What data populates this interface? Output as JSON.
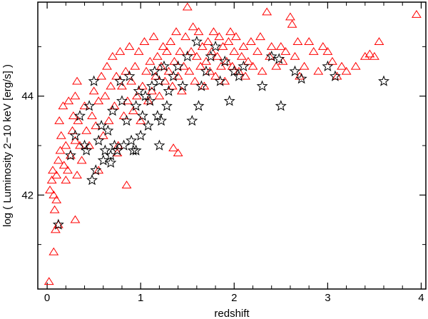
{
  "chart_data": {
    "type": "scatter",
    "title": "",
    "xlabel": "redshift",
    "ylabel": "log ( Luminosity 2−10 keV [erg/s] )",
    "xlim": [
      -0.1,
      4.05
    ],
    "ylim": [
      40.1,
      45.9
    ],
    "xticks": [
      0,
      1,
      2,
      3,
      4
    ],
    "xtick_labels": [
      "0",
      "1",
      "2",
      "3",
      "4"
    ],
    "yticks": [
      42,
      44
    ],
    "ytick_labels": [
      "42",
      "44"
    ],
    "grid": false,
    "legend": "none",
    "series": [
      {
        "marker": "triangle",
        "color": "#ff0000",
        "points": [
          [
            0.02,
            40.25
          ],
          [
            0.07,
            40.85
          ],
          [
            0.09,
            41.3
          ],
          [
            0.08,
            41.7
          ],
          [
            0.07,
            42.0
          ],
          [
            0.1,
            41.9
          ],
          [
            0.12,
            41.4
          ],
          [
            0.03,
            42.1
          ],
          [
            0.05,
            42.3
          ],
          [
            0.06,
            42.5
          ],
          [
            0.1,
            42.4
          ],
          [
            0.12,
            42.7
          ],
          [
            0.14,
            42.9
          ],
          [
            0.15,
            43.2
          ],
          [
            0.18,
            42.6
          ],
          [
            0.2,
            43.0
          ],
          [
            0.13,
            43.5
          ],
          [
            0.17,
            43.8
          ],
          [
            0.2,
            42.3
          ],
          [
            0.22,
            42.5
          ],
          [
            0.25,
            42.8
          ],
          [
            0.27,
            43.3
          ],
          [
            0.3,
            43.1
          ],
          [
            0.28,
            43.6
          ],
          [
            0.23,
            43.9
          ],
          [
            0.33,
            43.5
          ],
          [
            0.35,
            43.0
          ],
          [
            0.37,
            42.7
          ],
          [
            0.32,
            42.4
          ],
          [
            0.3,
            44.0
          ],
          [
            0.32,
            44.3
          ],
          [
            0.4,
            43.8
          ],
          [
            0.42,
            43.3
          ],
          [
            0.45,
            43.0
          ],
          [
            0.48,
            43.6
          ],
          [
            0.5,
            44.1
          ],
          [
            0.52,
            43.4
          ],
          [
            0.55,
            43.9
          ],
          [
            0.58,
            44.4
          ],
          [
            0.6,
            43.2
          ],
          [
            0.62,
            44.0
          ],
          [
            0.64,
            44.6
          ],
          [
            0.66,
            43.5
          ],
          [
            0.68,
            44.2
          ],
          [
            0.7,
            44.8
          ],
          [
            0.72,
            43.8
          ],
          [
            0.74,
            44.4
          ],
          [
            0.76,
            43.0
          ],
          [
            0.78,
            44.9
          ],
          [
            0.8,
            44.2
          ],
          [
            0.82,
            43.6
          ],
          [
            0.84,
            44.5
          ],
          [
            0.86,
            43.9
          ],
          [
            0.88,
            45.0
          ],
          [
            0.9,
            44.3
          ],
          [
            0.92,
            43.7
          ],
          [
            0.94,
            44.6
          ],
          [
            0.96,
            44.0
          ],
          [
            0.98,
            44.9
          ],
          [
            1.0,
            43.5
          ],
          [
            1.02,
            44.2
          ],
          [
            1.04,
            45.1
          ],
          [
            1.06,
            44.5
          ],
          [
            1.08,
            43.9
          ],
          [
            1.1,
            44.7
          ],
          [
            1.12,
            44.1
          ],
          [
            1.14,
            45.2
          ],
          [
            1.16,
            44.4
          ],
          [
            1.18,
            44.8
          ],
          [
            1.2,
            44.0
          ],
          [
            1.22,
            44.6
          ],
          [
            1.24,
            45.0
          ],
          [
            1.26,
            44.3
          ],
          [
            1.28,
            44.9
          ],
          [
            1.3,
            44.5
          ],
          [
            1.32,
            45.1
          ],
          [
            1.34,
            44.2
          ],
          [
            1.36,
            44.7
          ],
          [
            1.38,
            45.3
          ],
          [
            1.4,
            44.4
          ],
          [
            1.42,
            44.9
          ],
          [
            1.44,
            44.1
          ],
          [
            1.46,
            44.6
          ],
          [
            1.48,
            45.2
          ],
          [
            1.5,
            45.8
          ],
          [
            1.52,
            44.5
          ],
          [
            1.54,
            44.9
          ],
          [
            1.56,
            45.4
          ],
          [
            1.58,
            44.3
          ],
          [
            1.6,
            44.8
          ],
          [
            1.62,
            45.3
          ],
          [
            1.64,
            44.6
          ],
          [
            1.66,
            45.0
          ],
          [
            1.68,
            44.2
          ],
          [
            1.7,
            44.7
          ],
          [
            1.72,
            45.1
          ],
          [
            1.74,
            44.5
          ],
          [
            1.76,
            44.9
          ],
          [
            1.78,
            45.3
          ],
          [
            1.8,
            44.4
          ],
          [
            1.82,
            44.8
          ],
          [
            1.84,
            45.2
          ],
          [
            1.86,
            44.6
          ],
          [
            1.88,
            45.0
          ],
          [
            1.9,
            44.3
          ],
          [
            1.92,
            44.7
          ],
          [
            1.94,
            45.1
          ],
          [
            1.96,
            45.3
          ],
          [
            1.98,
            44.6
          ],
          [
            2.0,
            44.9
          ],
          [
            2.02,
            45.2
          ],
          [
            2.05,
            44.5
          ],
          [
            2.08,
            44.8
          ],
          [
            2.1,
            45.0
          ],
          [
            2.12,
            44.4
          ],
          [
            2.15,
            44.7
          ],
          [
            2.18,
            45.1
          ],
          [
            2.2,
            44.6
          ],
          [
            2.25,
            44.9
          ],
          [
            2.28,
            45.2
          ],
          [
            2.3,
            44.5
          ],
          [
            2.35,
            45.7
          ],
          [
            2.38,
            44.8
          ],
          [
            2.4,
            45.0
          ],
          [
            2.45,
            44.6
          ],
          [
            2.5,
            45.0
          ],
          [
            2.52,
            44.7
          ],
          [
            2.55,
            44.9
          ],
          [
            2.6,
            45.6
          ],
          [
            2.62,
            45.45
          ],
          [
            2.65,
            44.8
          ],
          [
            2.68,
            45.1
          ],
          [
            2.7,
            44.4
          ],
          [
            2.75,
            44.6
          ],
          [
            2.8,
            45.1
          ],
          [
            2.85,
            44.9
          ],
          [
            2.9,
            44.5
          ],
          [
            2.95,
            45.0
          ],
          [
            3.0,
            44.9
          ],
          [
            3.05,
            44.7
          ],
          [
            3.1,
            44.4
          ],
          [
            3.15,
            44.6
          ],
          [
            3.2,
            44.5
          ],
          [
            3.3,
            44.6
          ],
          [
            3.4,
            44.8
          ],
          [
            3.45,
            44.85
          ],
          [
            3.5,
            44.8
          ],
          [
            3.55,
            45.1
          ],
          [
            3.95,
            45.65
          ],
          [
            0.85,
            42.2
          ],
          [
            0.75,
            42.85
          ],
          [
            1.35,
            42.95
          ],
          [
            1.4,
            42.85
          ],
          [
            0.3,
            41.5
          ],
          [
            0.55,
            42.5
          ]
        ]
      },
      {
        "marker": "star",
        "color": "#000000",
        "points": [
          [
            0.12,
            41.4
          ],
          [
            0.25,
            42.8
          ],
          [
            0.3,
            43.2
          ],
          [
            0.35,
            43.6
          ],
          [
            0.4,
            43.0
          ],
          [
            0.42,
            42.9
          ],
          [
            0.45,
            43.8
          ],
          [
            0.48,
            42.3
          ],
          [
            0.52,
            42.5
          ],
          [
            0.55,
            43.1
          ],
          [
            0.58,
            43.4
          ],
          [
            0.6,
            42.7
          ],
          [
            0.62,
            42.9
          ],
          [
            0.65,
            43.3
          ],
          [
            0.68,
            42.8
          ],
          [
            0.7,
            43.7
          ],
          [
            0.72,
            43.0
          ],
          [
            0.75,
            42.9
          ],
          [
            0.78,
            44.3
          ],
          [
            0.8,
            43.9
          ],
          [
            0.82,
            43.0
          ],
          [
            0.85,
            43.5
          ],
          [
            0.88,
            44.4
          ],
          [
            0.9,
            43.1
          ],
          [
            0.92,
            42.9
          ],
          [
            0.95,
            43.8
          ],
          [
            0.98,
            44.1
          ],
          [
            1.0,
            43.2
          ],
          [
            1.02,
            43.6
          ],
          [
            1.05,
            44.0
          ],
          [
            1.08,
            43.4
          ],
          [
            1.1,
            43.9
          ],
          [
            1.12,
            44.2
          ],
          [
            1.15,
            44.5
          ],
          [
            1.18,
            43.6
          ],
          [
            1.2,
            44.3
          ],
          [
            1.22,
            43.5
          ],
          [
            1.25,
            44.6
          ],
          [
            1.28,
            43.8
          ],
          [
            1.3,
            44.1
          ],
          [
            1.35,
            44.4
          ],
          [
            1.4,
            44.6
          ],
          [
            1.45,
            44.2
          ],
          [
            1.5,
            44.8
          ],
          [
            1.55,
            43.5
          ],
          [
            1.6,
            45.1
          ],
          [
            1.62,
            43.8
          ],
          [
            1.65,
            44.2
          ],
          [
            1.7,
            44.5
          ],
          [
            1.75,
            44.8
          ],
          [
            1.8,
            45.0
          ],
          [
            1.85,
            44.3
          ],
          [
            1.9,
            44.7
          ],
          [
            1.95,
            43.9
          ],
          [
            2.0,
            44.5
          ],
          [
            2.05,
            44.4
          ],
          [
            2.1,
            44.6
          ],
          [
            2.3,
            44.2
          ],
          [
            2.4,
            44.8
          ],
          [
            2.48,
            44.75
          ],
          [
            2.5,
            43.8
          ],
          [
            2.65,
            44.5
          ],
          [
            2.72,
            44.35
          ],
          [
            3.0,
            44.6
          ],
          [
            3.08,
            44.4
          ],
          [
            3.6,
            44.3
          ],
          [
            0.5,
            44.3
          ],
          [
            0.95,
            42.9
          ],
          [
            1.2,
            43.0
          ],
          [
            0.68,
            42.65
          ]
        ]
      }
    ]
  }
}
